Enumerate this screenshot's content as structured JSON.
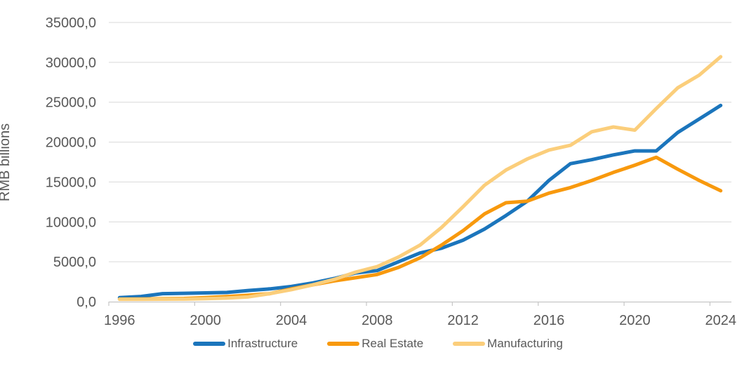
{
  "chart_data": {
    "type": "line",
    "title": "",
    "xlabel": "",
    "ylabel": "RMB billions",
    "ylim": [
      0,
      35000
    ],
    "ytick_step": 5000,
    "ytick_labels": [
      "0,0",
      "5000,0",
      "10000,0",
      "15000,0",
      "20000,0",
      "25000,0",
      "30000,0",
      "35000,0"
    ],
    "xtick_labels": [
      "1996",
      "2000",
      "2004",
      "2008",
      "2012",
      "2016",
      "2020",
      "2024"
    ],
    "xtick_every": 4,
    "grid": "horizontal",
    "legend_position": "bottom",
    "x": [
      1996,
      1997,
      1998,
      1999,
      2000,
      2001,
      2002,
      2003,
      2004,
      2005,
      2006,
      2007,
      2008,
      2009,
      2010,
      2011,
      2012,
      2013,
      2014,
      2015,
      2016,
      2017,
      2018,
      2019,
      2020,
      2021,
      2022,
      2023,
      2024
    ],
    "series": [
      {
        "name": "Infrastructure",
        "color": "#1B75BC",
        "values": [
          500,
          650,
          1000,
          1050,
          1100,
          1150,
          1400,
          1600,
          1900,
          2350,
          2900,
          3600,
          3900,
          5000,
          6100,
          6700,
          7700,
          9100,
          10800,
          12600,
          15200,
          17300,
          17800,
          18400,
          18900,
          18900,
          21200,
          22900,
          24600
        ]
      },
      {
        "name": "Real Estate",
        "color": "#F8990D",
        "values": [
          320,
          330,
          360,
          400,
          500,
          630,
          800,
          1000,
          1600,
          2100,
          2600,
          3000,
          3400,
          4300,
          5500,
          7100,
          8900,
          11000,
          12400,
          12600,
          13600,
          14300,
          15200,
          16200,
          17100,
          18100,
          16600,
          15200,
          13900
        ]
      },
      {
        "name": "Manufacturing",
        "color": "#FBCE7B",
        "values": [
          300,
          300,
          310,
          320,
          380,
          450,
          600,
          1000,
          1500,
          2100,
          2800,
          3700,
          4400,
          5600,
          7100,
          9300,
          11900,
          14600,
          16500,
          17900,
          19000,
          19600,
          21300,
          21900,
          21500,
          24200,
          26800,
          28400,
          30700
        ]
      }
    ],
    "colors": {
      "gridline": "#D9D9D9",
      "axis_line": "#C6C6C6",
      "tick_mark": "#C6C6C6",
      "text": "#595959"
    }
  }
}
